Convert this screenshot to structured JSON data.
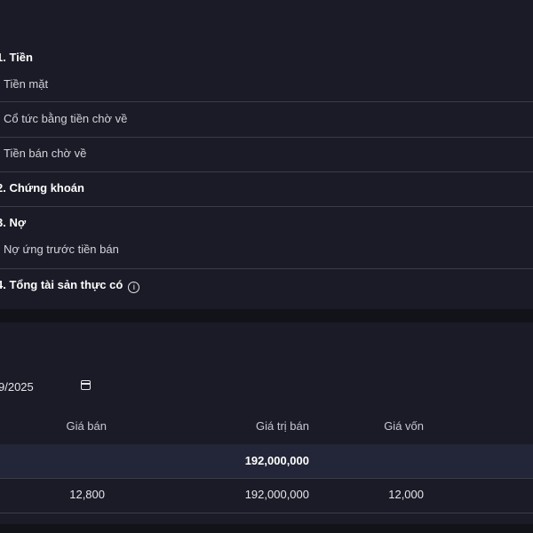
{
  "summary": {
    "sections": [
      {
        "title": "1. Tiền",
        "items": [
          "Tiền mặt",
          "Cổ tức bằng tiền chờ về",
          "Tiền bán chờ về"
        ]
      },
      {
        "title": "2. Chứng khoán",
        "items": []
      },
      {
        "title": "3. Nợ",
        "items": [
          "Nợ ứng trước tiền bán"
        ]
      },
      {
        "title": "4. Tổng tài sản thực có",
        "items": [],
        "info_icon": "info-circle-icon"
      }
    ]
  },
  "filter": {
    "date_value": "9/2025",
    "date_icon": "calendar-icon"
  },
  "table": {
    "headers": [
      "Giá bán",
      "Giá trị bán",
      "Giá vốn"
    ],
    "total": {
      "gia_tri_ban": "192,000,000"
    },
    "rows": [
      {
        "gia_ban": "12,800",
        "gia_tri_ban": "192,000,000",
        "gia_von": "12,000"
      }
    ]
  }
}
